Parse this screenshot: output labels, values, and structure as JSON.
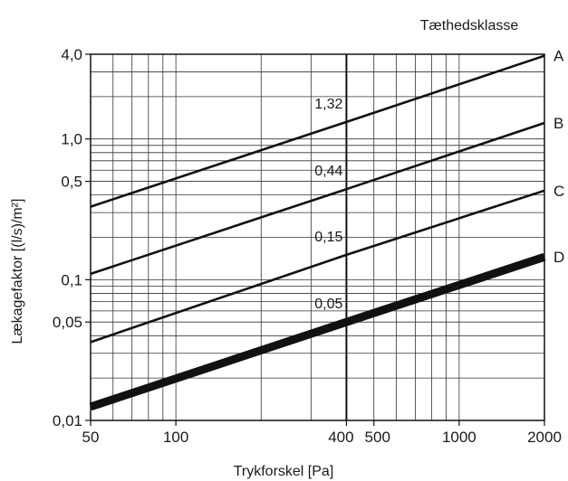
{
  "chart_data": {
    "type": "line",
    "title": "",
    "legend_title": "Tæthedsklasse",
    "xlabel": "Trykforskel [Pa]",
    "ylabel": "Lækagefaktor [(l/s)/m²]",
    "xscale": "log",
    "yscale": "log",
    "xlim": [
      50,
      2000
    ],
    "ylim": [
      0.01,
      4.0
    ],
    "grid": true,
    "x_ticks": [
      {
        "value": 50,
        "label": "50"
      },
      {
        "value": 100,
        "label": "100"
      },
      {
        "value": 400,
        "label": "400"
      },
      {
        "value": 500,
        "label": "500"
      },
      {
        "value": 1000,
        "label": "1000"
      },
      {
        "value": 2000,
        "label": "2000"
      }
    ],
    "y_ticks": [
      {
        "value": 0.01,
        "label": "0,01"
      },
      {
        "value": 0.05,
        "label": "0,05"
      },
      {
        "value": 0.1,
        "label": "0,1"
      },
      {
        "value": 0.5,
        "label": "0,5"
      },
      {
        "value": 1.0,
        "label": "1,0"
      },
      {
        "value": 4.0,
        "label": "4,0"
      }
    ],
    "reference_line": {
      "x": 400
    },
    "series": [
      {
        "name": "A",
        "x": [
          50,
          400,
          2000
        ],
        "y": [
          0.33,
          1.32,
          3.9
        ],
        "annotation": "1,32"
      },
      {
        "name": "B",
        "x": [
          50,
          400,
          2000
        ],
        "y": [
          0.11,
          0.44,
          1.3
        ],
        "annotation": "0,44"
      },
      {
        "name": "C",
        "x": [
          50,
          400,
          2000
        ],
        "y": [
          0.036,
          0.15,
          0.43
        ],
        "annotation": "0,15"
      },
      {
        "name": "D",
        "x": [
          50,
          400,
          2000
        ],
        "y": [
          0.0125,
          0.05,
          0.145
        ],
        "annotation": "0,05"
      }
    ]
  }
}
